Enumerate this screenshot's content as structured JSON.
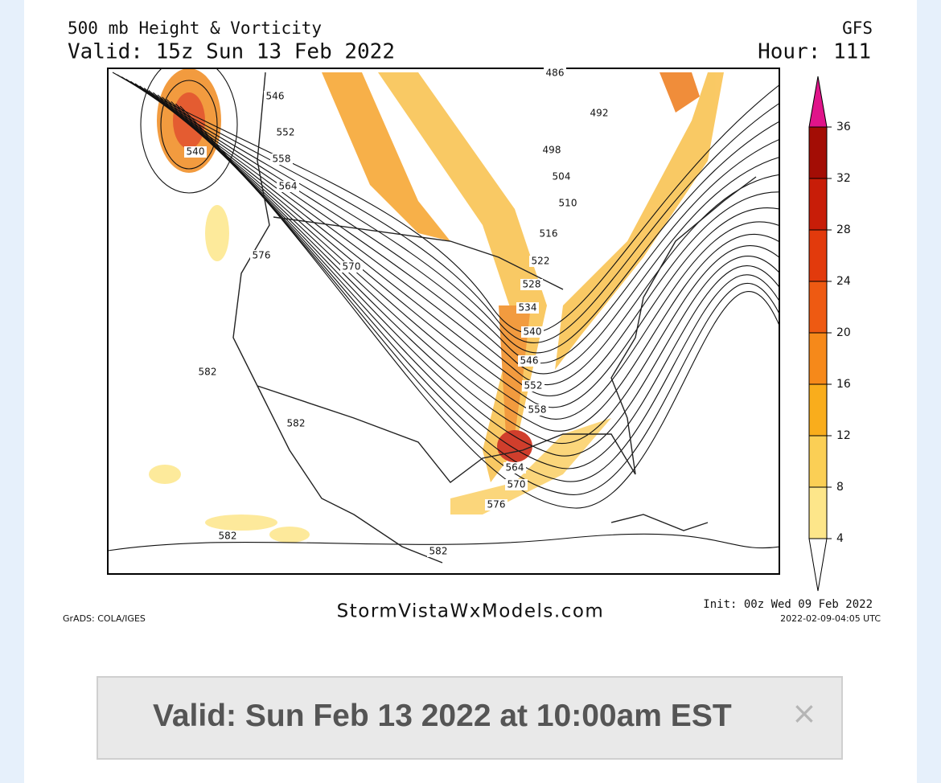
{
  "header": {
    "title": "500 mb Height & Vorticity",
    "valid": "Valid: 15z Sun 13 Feb 2022",
    "model": "GFS",
    "hour": "Hour: 111"
  },
  "contour_labels": [
    "546",
    "552",
    "558",
    "564",
    "540",
    "576",
    "570",
    "582",
    "582",
    "582",
    "582",
    "486",
    "492",
    "498",
    "504",
    "510",
    "516",
    "522",
    "528",
    "534",
    "540",
    "546",
    "552",
    "558",
    "564",
    "570",
    "576"
  ],
  "colorbar": {
    "levels": [
      4,
      8,
      12,
      16,
      20,
      24,
      28,
      32,
      36
    ],
    "colors": [
      "#fde68a",
      "#fbcf55",
      "#f9ad1c",
      "#f6891a",
      "#ee5a12",
      "#e23a0c",
      "#c81d08",
      "#a30d05",
      "#7e0303"
    ]
  },
  "footer": {
    "grads": "GrADS: COLA/IGES",
    "site": "StormVistaWxModels.com",
    "init": "Init: 00z Wed 09 Feb 2022",
    "stamp": "2022-02-09-04:05 UTC"
  },
  "banner": {
    "text": "Valid: Sun Feb 13 2022 at 10:00am EST",
    "close": "×"
  }
}
